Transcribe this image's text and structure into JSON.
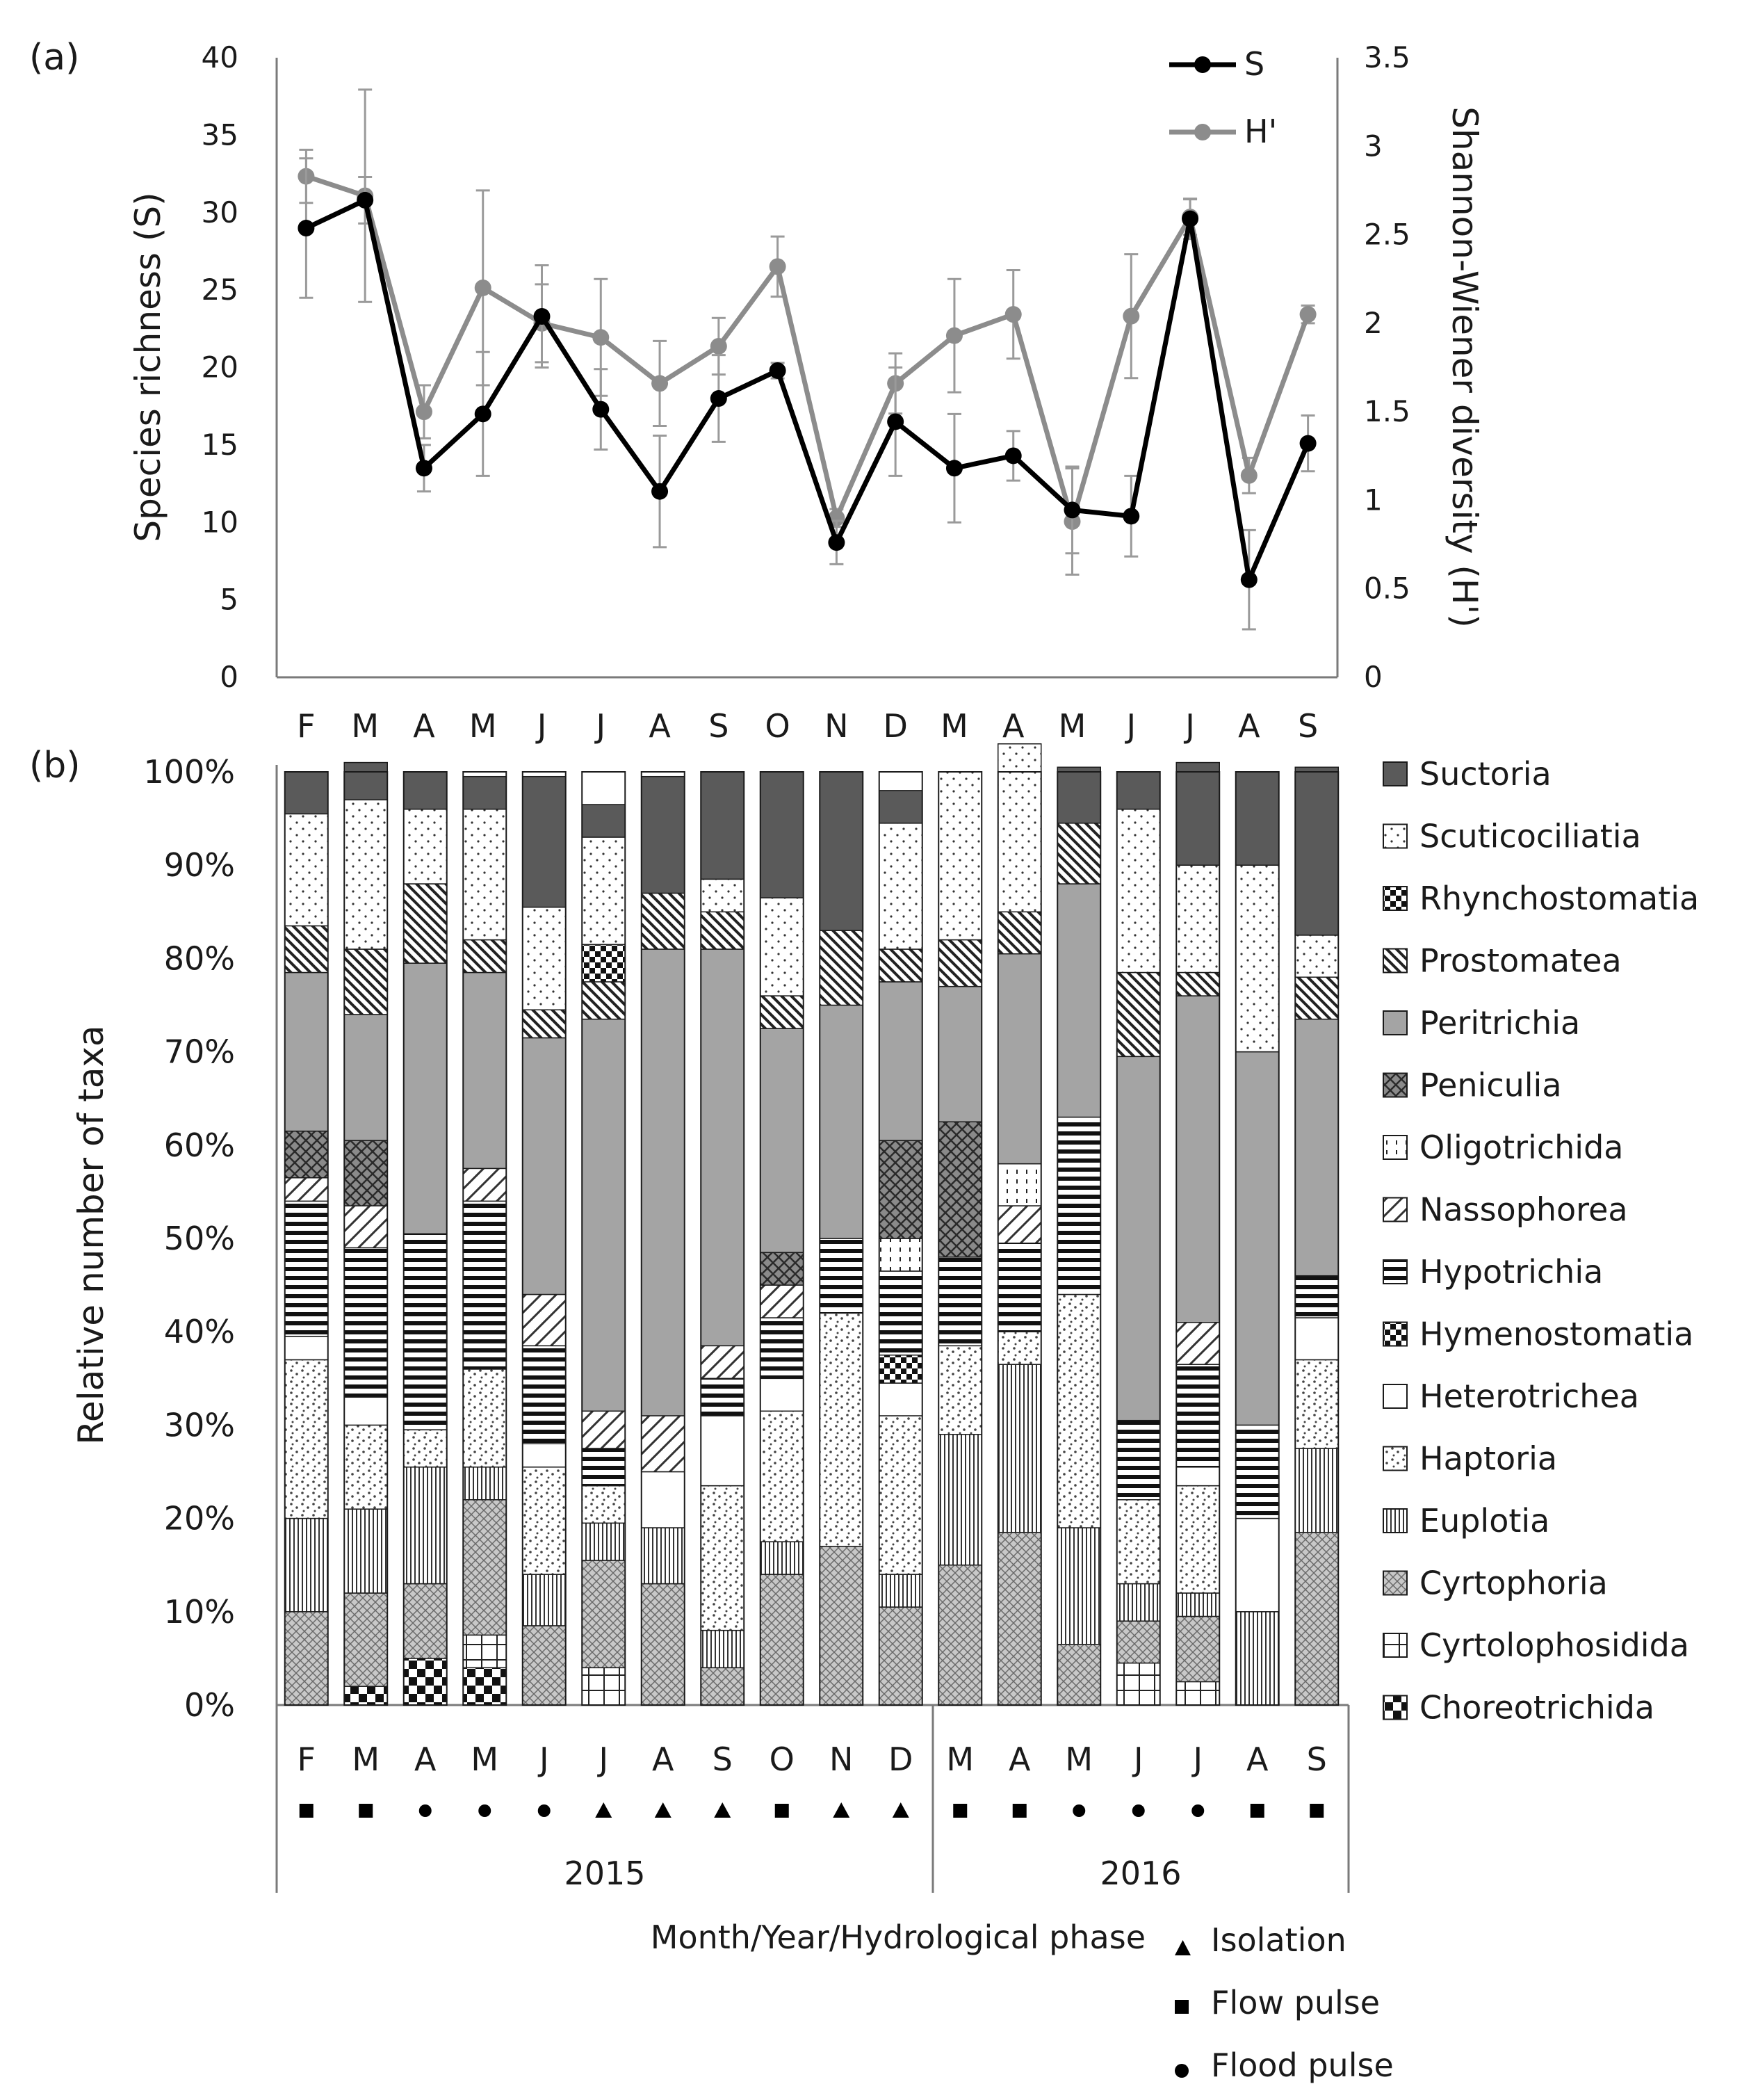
{
  "panel_labels": {
    "a": "(a)",
    "b": "(b)"
  },
  "chart_data": [
    {
      "type": "line",
      "title": "",
      "x": [
        "F",
        "M",
        "A",
        "M",
        "J",
        "J",
        "A",
        "S",
        "O",
        "N",
        "D",
        "M",
        "A",
        "M",
        "J",
        "J",
        "A",
        "S"
      ],
      "ylabel": "Species richness (S)",
      "y2label": "Shannon-Wiener diversity (H')",
      "ylim": [
        0,
        40
      ],
      "y_ticks": [
        "0",
        "5",
        "10",
        "15",
        "20",
        "25",
        "30",
        "35",
        "40"
      ],
      "y2lim": [
        0,
        3.5
      ],
      "y2_ticks": [
        "0",
        "0.5",
        "1",
        "1.5",
        "2",
        "2.5",
        "3",
        "3.5"
      ],
      "grid": false,
      "legend_position": "top-right",
      "series": [
        {
          "name": "S",
          "axis": "left",
          "color": "#000000",
          "values": [
            29.0,
            30.8,
            13.5,
            17.0,
            23.3,
            17.3,
            12.0,
            18.0,
            19.8,
            8.7,
            16.5,
            13.5,
            14.3,
            10.8,
            10.4,
            29.6,
            6.3,
            15.1
          ],
          "errors": [
            4.5,
            1.5,
            1.5,
            4.0,
            3.3,
            2.6,
            3.6,
            2.8,
            0.5,
            1.4,
            3.5,
            3.5,
            1.6,
            2.8,
            2.6,
            1.3,
            3.2,
            1.8
          ]
        },
        {
          "name": "H'",
          "axis": "right",
          "color": "#8c8c8c",
          "values": [
            2.83,
            2.72,
            1.5,
            2.2,
            2.0,
            1.92,
            1.66,
            1.87,
            2.32,
            0.9,
            1.66,
            1.93,
            2.05,
            0.88,
            2.04,
            2.6,
            1.14,
            2.05
          ],
          "errors": [
            0.15,
            0.6,
            0.15,
            0.55,
            0.22,
            0.33,
            0.24,
            0.16,
            0.17,
            0.05,
            0.17,
            0.32,
            0.25,
            0.3,
            0.35,
            0.1,
            0.1,
            0.05
          ]
        }
      ]
    },
    {
      "type": "bar",
      "stacked": true,
      "title": "",
      "categories": [
        "F",
        "M",
        "A",
        "M",
        "J",
        "J",
        "A",
        "S",
        "O",
        "N",
        "D",
        "M",
        "A",
        "M",
        "J",
        "J",
        "A",
        "S"
      ],
      "ylabel": "Relative number of taxa",
      "ylim": [
        0,
        100
      ],
      "y_ticks": [
        "0%",
        "10%",
        "20%",
        "30%",
        "40%",
        "50%",
        "60%",
        "70%",
        "80%",
        "90%",
        "100%"
      ],
      "xlabel": "Month/Year/Hydrological phase",
      "years": [
        {
          "label": "2015",
          "span": 11
        },
        {
          "label": "2016",
          "span": 7
        }
      ],
      "phases": [
        "Flow pulse",
        "Flow pulse",
        "Flood pulse",
        "Flood pulse",
        "Flood pulse",
        "Isolation",
        "Isolation",
        "Isolation",
        "Flow pulse",
        "Isolation",
        "Isolation",
        "Flow pulse",
        "Flow pulse",
        "Flood pulse",
        "Flood pulse",
        "Flood pulse",
        "Flow pulse",
        "Flow pulse"
      ],
      "phase_legend": [
        {
          "name": "Isolation",
          "marker": "triangle"
        },
        {
          "name": "Flow pulse",
          "marker": "square"
        },
        {
          "name": "Flood pulse",
          "marker": "circle"
        }
      ],
      "legend_position": "right",
      "series": [
        {
          "name": "Choreotrichida",
          "pattern": "checker",
          "values": [
            0,
            2,
            5,
            4,
            0,
            0,
            0,
            0,
            0,
            0,
            0,
            0,
            0,
            0,
            0,
            0,
            0,
            0
          ]
        },
        {
          "name": "Cyrtolophosidida",
          "pattern": "plus",
          "values": [
            0,
            0,
            0,
            3.5,
            0,
            4,
            0,
            0,
            0,
            0,
            0,
            0,
            0,
            0,
            4.5,
            2.5,
            0,
            0
          ]
        },
        {
          "name": "Cyrtophoria",
          "pattern": "crosshatch",
          "values": [
            10,
            10,
            8,
            14.5,
            8.5,
            11.5,
            13,
            4,
            14,
            17,
            10.5,
            15,
            18.5,
            6.5,
            4.5,
            7,
            0,
            18.5
          ]
        },
        {
          "name": "Euplotia",
          "pattern": "vlines",
          "values": [
            10,
            9,
            12.5,
            3.5,
            5.5,
            4,
            6,
            4,
            3.5,
            0,
            3.5,
            14,
            18,
            12.5,
            4,
            2.5,
            10,
            9
          ]
        },
        {
          "name": "Haptoria",
          "pattern": "dots",
          "values": [
            17,
            9,
            4,
            10.5,
            11.5,
            4,
            0,
            15.5,
            14,
            25,
            17,
            9.5,
            3.5,
            25,
            9,
            11.5,
            0,
            9.5
          ]
        },
        {
          "name": "Heterotrichea",
          "pattern": "white",
          "values": [
            2.5,
            3,
            0,
            0,
            2.5,
            0,
            6,
            7.5,
            3.5,
            0,
            3.5,
            0,
            0,
            0,
            0,
            2,
            10,
            4.5
          ]
        },
        {
          "name": "Hymenostomatia",
          "pattern": "bigcheck",
          "values": [
            0,
            0,
            0,
            0,
            0,
            0,
            0,
            0,
            0,
            0,
            3,
            0,
            0,
            0,
            0,
            0,
            0,
            0
          ]
        },
        {
          "name": "Hypotrichia",
          "pattern": "hlines",
          "values": [
            14.5,
            16,
            21,
            18,
            10.5,
            4,
            0,
            4,
            6.5,
            8,
            9,
            9.5,
            9.5,
            19,
            8.5,
            11,
            10,
            4.5
          ]
        },
        {
          "name": "Nassophorea",
          "pattern": "fwdiag",
          "values": [
            2.5,
            4.5,
            0,
            3.5,
            5.5,
            4,
            6,
            3.5,
            3.5,
            0,
            0,
            0,
            4,
            0,
            0,
            4.5,
            0,
            0
          ]
        },
        {
          "name": "Oligotrichida",
          "pattern": "vsparse",
          "values": [
            0,
            0,
            0,
            0,
            0,
            0,
            0,
            0,
            0,
            0,
            3.5,
            0,
            4.5,
            0,
            0,
            0,
            0,
            0
          ]
        },
        {
          "name": "Peniculia",
          "pattern": "crosshatch2",
          "values": [
            5,
            7,
            0,
            0,
            0,
            0,
            0,
            0,
            3.5,
            0,
            10.5,
            14.5,
            0,
            0,
            0,
            0,
            0,
            0
          ]
        },
        {
          "name": "Peritrichia",
          "pattern": "grey",
          "values": [
            17,
            13.5,
            29,
            21,
            27.5,
            42,
            50,
            42.5,
            24,
            25,
            17,
            14.5,
            22.5,
            25,
            39,
            35,
            40,
            27.5
          ]
        },
        {
          "name": "Prostomatea",
          "pattern": "bkdiag",
          "values": [
            5,
            7,
            8.5,
            3.5,
            3,
            4,
            6,
            4,
            3.5,
            8,
            3.5,
            5,
            4.5,
            6.5,
            9,
            2.5,
            0,
            4.5
          ]
        },
        {
          "name": "Rhynchostomatia",
          "pattern": "bigcheck",
          "values": [
            0,
            0,
            0,
            0,
            0,
            4,
            0,
            0,
            0,
            0,
            0,
            0,
            0,
            0,
            0,
            0,
            0,
            0
          ]
        },
        {
          "name": "Scuticociliatia",
          "pattern": "sparse",
          "values": [
            12,
            16,
            8,
            14,
            11,
            11.5,
            0,
            3.5,
            10.5,
            0,
            13.5,
            18,
            18,
            0,
            17.5,
            11.5,
            20,
            4.5
          ]
        },
        {
          "name": "Suctoria",
          "pattern": "dark",
          "values": [
            4.5,
            4,
            4,
            3.5,
            14,
            3.5,
            12.5,
            11.5,
            13.5,
            17,
            3.5,
            0,
            0,
            6,
            4,
            11,
            10,
            18
          ]
        }
      ]
    }
  ]
}
